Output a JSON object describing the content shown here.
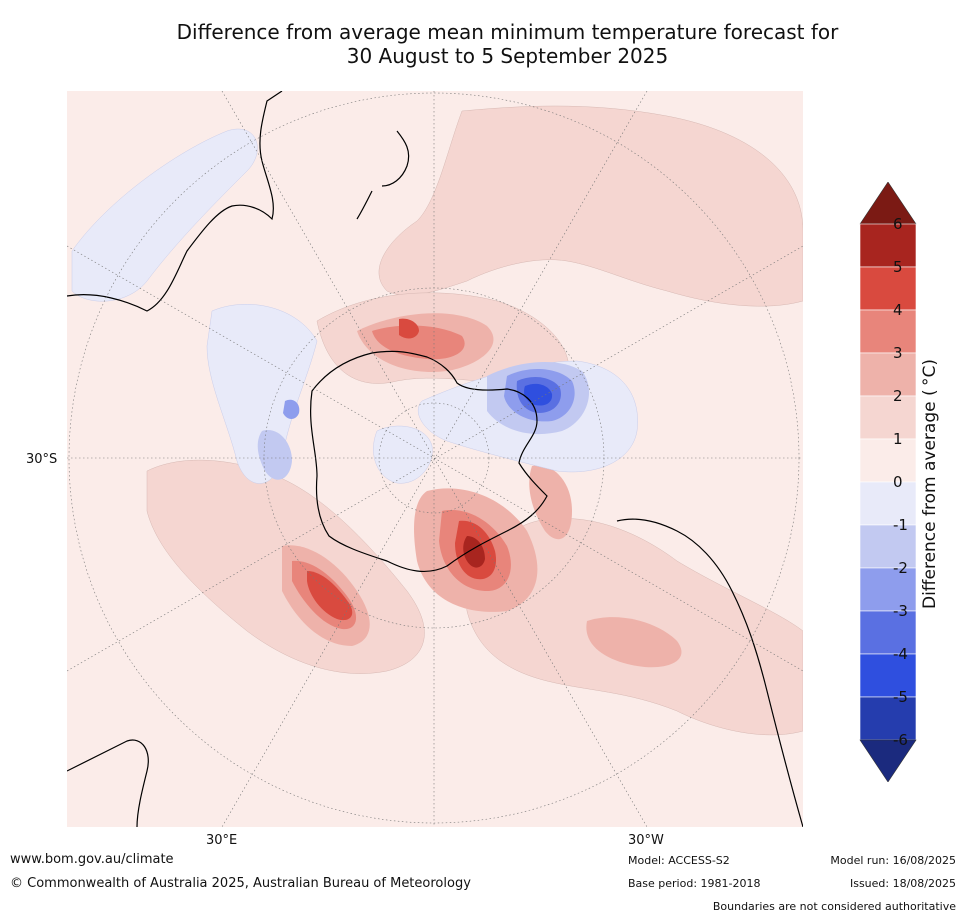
{
  "title_line1": "Difference from average mean minimum temperature forecast for",
  "title_line2": "30 August to 5 September 2025",
  "axis_labels": {
    "lat": "30°S",
    "lon_east": "30°E",
    "lon_west": "30°W"
  },
  "colorbar": {
    "label": "Difference from average ( °C)",
    "ticks": [
      "6",
      "5",
      "4",
      "3",
      "2",
      "1",
      "0",
      "-1",
      "-2",
      "-3",
      "-4",
      "-5",
      "-6"
    ],
    "colors": [
      "#7b1a14",
      "#a8251f",
      "#d94a3f",
      "#e8857b",
      "#eeb2aa",
      "#f5d6d1",
      "#fbece9",
      "#e8eaf9",
      "#c2c9f1",
      "#8e9ded",
      "#5a70e2",
      "#2f4fdf",
      "#253dae",
      "#1b2a7e"
    ]
  },
  "map": {
    "projection": "south polar stereographic",
    "features": [
      "Antarctica",
      "Australia",
      "New Zealand",
      "South America",
      "Southern Africa"
    ]
  },
  "footer": {
    "website": "www.bom.gov.au/climate",
    "copyright": "© Commonwealth of Australia 2025, Australian Bureau of Meteorology",
    "model": "Model: ACCESS-S2",
    "base_period": "Base period: 1981-2018",
    "model_run": "Model run: 16/08/2025",
    "issued": "Issued: 18/08/2025",
    "disclaimer": "Boundaries are not considered authoritative"
  }
}
